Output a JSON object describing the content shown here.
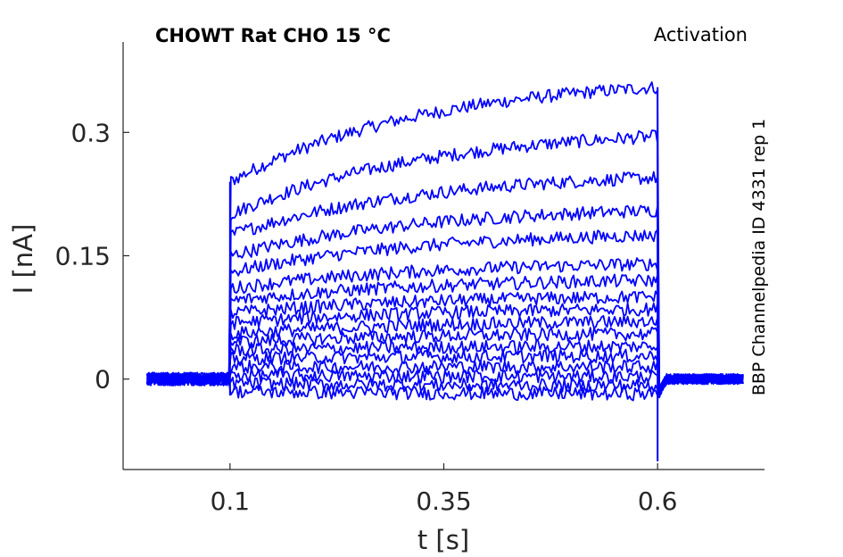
{
  "chart_data": {
    "type": "line",
    "title": "CHOWT  Rat  CHO  15 °C",
    "title_right": "Activation",
    "side_label": "BBP Channelpedia ID 4331 rep 1",
    "xlabel": "t [s]",
    "ylabel": "I [nA]",
    "xlim": [
      -0.025,
      0.725
    ],
    "ylim": [
      -0.11,
      0.41
    ],
    "xticks": [
      0.1,
      0.35,
      0.6
    ],
    "xtick_labels": [
      "0.1",
      "0.35",
      "0.6"
    ],
    "yticks": [
      0,
      0.15,
      0.3
    ],
    "ytick_labels": [
      "0",
      "0.15",
      "0.3"
    ],
    "grid": false,
    "line_color": "#0000ff",
    "step_start": 0.1,
    "step_end": 0.6,
    "trace_start": 0.003,
    "trace_end": 0.7,
    "series": [
      {
        "start": 0.24,
        "end": 0.355
      },
      {
        "start": 0.2,
        "end": 0.295
      },
      {
        "start": 0.175,
        "end": 0.245
      },
      {
        "start": 0.15,
        "end": 0.205
      },
      {
        "start": 0.13,
        "end": 0.175
      },
      {
        "start": 0.11,
        "end": 0.14
      },
      {
        "start": 0.095,
        "end": 0.12
      },
      {
        "start": 0.08,
        "end": 0.1
      },
      {
        "start": 0.068,
        "end": 0.085
      },
      {
        "start": 0.055,
        "end": 0.07
      },
      {
        "start": 0.045,
        "end": 0.055
      },
      {
        "start": 0.035,
        "end": 0.04
      },
      {
        "start": 0.025,
        "end": 0.028
      },
      {
        "start": 0.015,
        "end": 0.015
      },
      {
        "start": 0.005,
        "end": 0.003
      },
      {
        "start": -0.005,
        "end": -0.008
      },
      {
        "start": -0.015,
        "end": -0.018
      }
    ]
  }
}
